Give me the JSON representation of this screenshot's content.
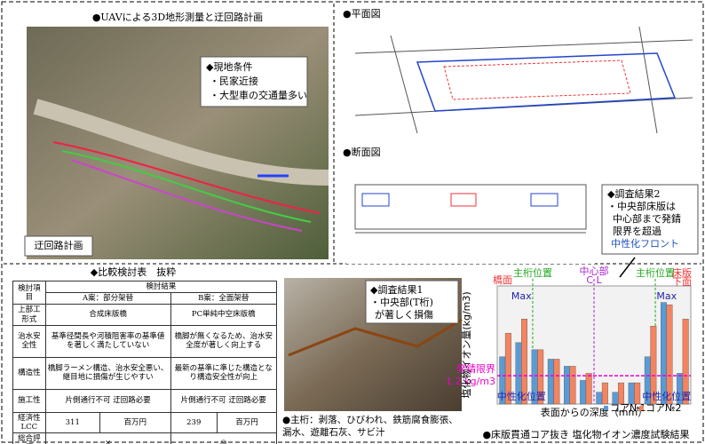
{
  "uav": {
    "title": "●UAVによる3D地形測量と迂回路計画",
    "conditions": {
      "heading": "◆現地条件",
      "items": [
        "・民家近接",
        "・大型車の交通量多い"
      ]
    },
    "route_label": "迂回路計画"
  },
  "plan": {
    "title": "●平面図"
  },
  "section": {
    "title": "●断面図"
  },
  "result2": {
    "heading": "◆調査結果2",
    "lines": [
      "・中央部床版は",
      "中心部まで発錆",
      "限界を超過"
    ],
    "highlight": "中性化フロント"
  },
  "table": {
    "title": "◆比較検討表　抜粋",
    "header": [
      "検討項目",
      "検討結果"
    ],
    "subheader": [
      "A案：部分架替",
      "B案：全面架替"
    ],
    "rows": [
      [
        "上部工形式",
        "合成床版橋",
        "PC単純中空床版橋"
      ],
      [
        "治水安全性",
        "基準径間長や河積阻害率の基準値を著しく満たしていない",
        "橋脚が無くなるため、治水安全度が著しく向上する"
      ],
      [
        "構造性",
        "橋脚ラーメン構造、治水安全悪い、継目地に損傷が生じやすい",
        "最新の基準に準じた構造となり構造安全性が向上"
      ],
      [
        "施工性",
        "片側通行不可 迂回路必要",
        "片側通行不可 迂回路必要"
      ]
    ],
    "lcc": {
      "label": "経済性LCC",
      "a": 311,
      "b": 239,
      "unit": "百万円"
    },
    "overall": {
      "label": "総合評価",
      "a": "×",
      "b": "◎"
    }
  },
  "result1": {
    "heading": "◆調査結果1",
    "lines": [
      "・中央部(T桁)",
      "が著しく損傷"
    ]
  },
  "girder_caption": "●主桁：剥落、ひびわれ、鉄筋腐食膨張、漏水、遊離石灰、サビ汁",
  "chart": {
    "type": "bar",
    "caption": "●床版貫通コア抜き 塩化物イオン濃度試験結果",
    "y_label": "塩化物イオン量(kg/m3)",
    "x_label": "表面からの深度（mm）",
    "ylim": [
      0,
      5
    ],
    "series": [
      {
        "name": "コア№1",
        "color": "#5b9bd5",
        "values": [
          2.0,
          2.6,
          2.3,
          1.9,
          1.6,
          1.0,
          0.5,
          0.5,
          0.9,
          2.0,
          4.3,
          1.3
        ]
      },
      {
        "name": "コア№2",
        "color": "#f4845f",
        "values": [
          3.0,
          3.6,
          2.3,
          1.9,
          1.6,
          1.3,
          0.9,
          0.9,
          0.9,
          3.3,
          4.2,
          3.6
        ]
      }
    ],
    "threshold": {
      "value": 1.2,
      "label": "発錆限界",
      "value_label": "1.2 kg/m3"
    },
    "markers": [
      "橋面",
      "主桁位置",
      "中心部",
      "C L",
      "主桁位置",
      "床版",
      "下面"
    ],
    "max_label": "Max",
    "neutral_label": "中性化位置"
  }
}
